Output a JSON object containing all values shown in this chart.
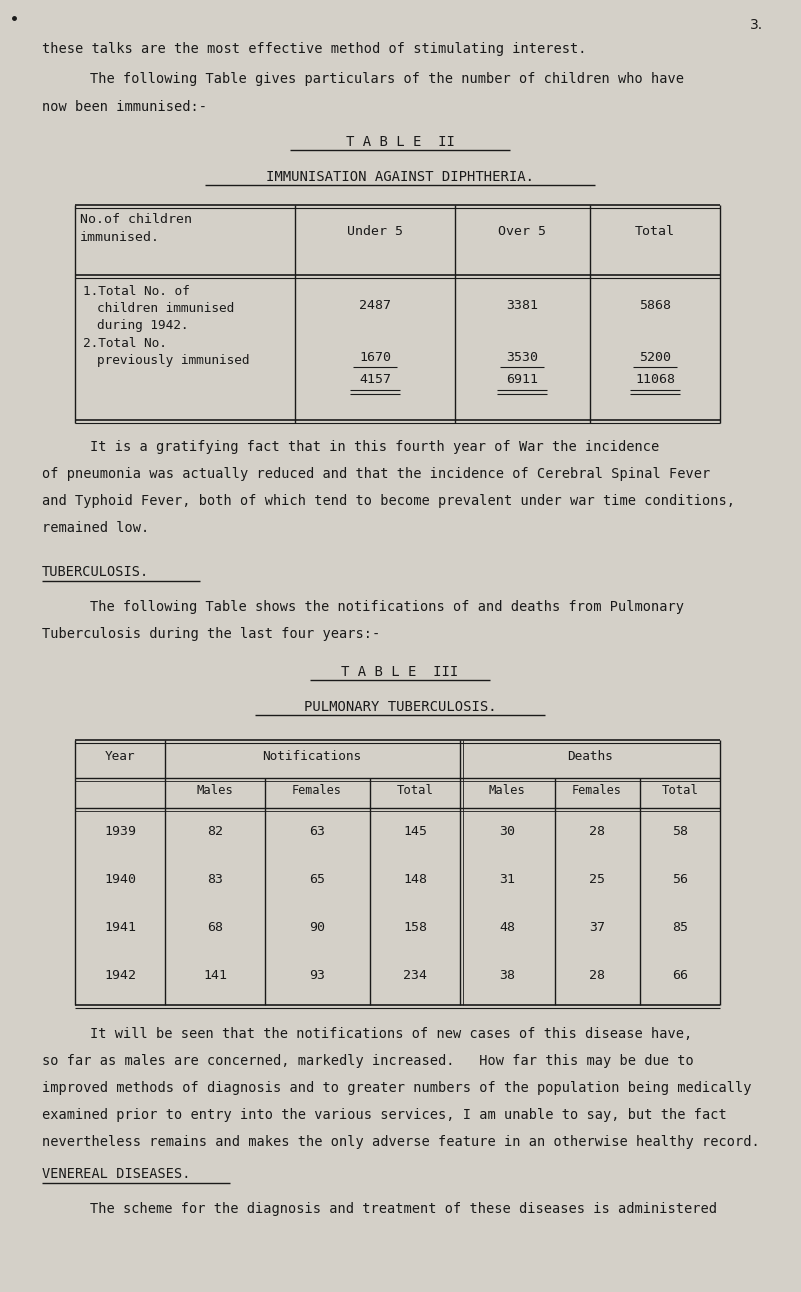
{
  "bg_color": "#d4d0c8",
  "text_color": "#1a1a1a",
  "page_number": "3.",
  "para1": "these talks are the most effective method of stimulating interest.",
  "para2a": "The following Table gives particulars of the number of children who have",
  "para2b": "now been immunised:-",
  "table2_title1": "T A B L E  II",
  "table2_title2": "IMMUNISATION AGAINST DIPHTHERIA.",
  "para3a": "It is a gratifying fact that in this fourth year of War the incidence",
  "para3b": "of pneumonia was actually reduced and that the incidence of Cerebral Spinal Fever",
  "para3c": "and Typhoid Fever, both of which tend to become prevalent under war time conditions,",
  "para3d": "remained low.",
  "tuberculosis_header": "TUBERCULOSIS.",
  "para4a": "The following Table shows the notifications of and deaths from Pulmonary",
  "para4b": "Tuberculosis during the last four years:-",
  "table3_title1": "T A B L E  III",
  "table3_title2": "PULMONARY TUBERCULOSIS.",
  "table3_rows": [
    [
      "1939",
      "82",
      "63",
      "145",
      "30",
      "28",
      "58"
    ],
    [
      "1940",
      "83",
      "65",
      "148",
      "31",
      "25",
      "56"
    ],
    [
      "1941",
      "68",
      "90",
      "158",
      "48",
      "37",
      "85"
    ],
    [
      "1942",
      "141",
      "93",
      "234",
      "38",
      "28",
      "66"
    ]
  ],
  "para5a": "It will be seen that the notifications of new cases of this disease have,",
  "para5b": "so far as males are concerned, markedly increased.   How far this may be due to",
  "para5c": "improved methods of diagnosis and to greater numbers of the population being medically",
  "para5d": "examined prior to entry into the various services, I am unable to say, but the fact",
  "para5e": "nevertheless remains and makes the only adverse feature in an otherwise healthy record.",
  "venereal_header": "VENEREAL DISEASES.",
  "para6": "The scheme for the diagnosis and treatment of these diseases is administered"
}
